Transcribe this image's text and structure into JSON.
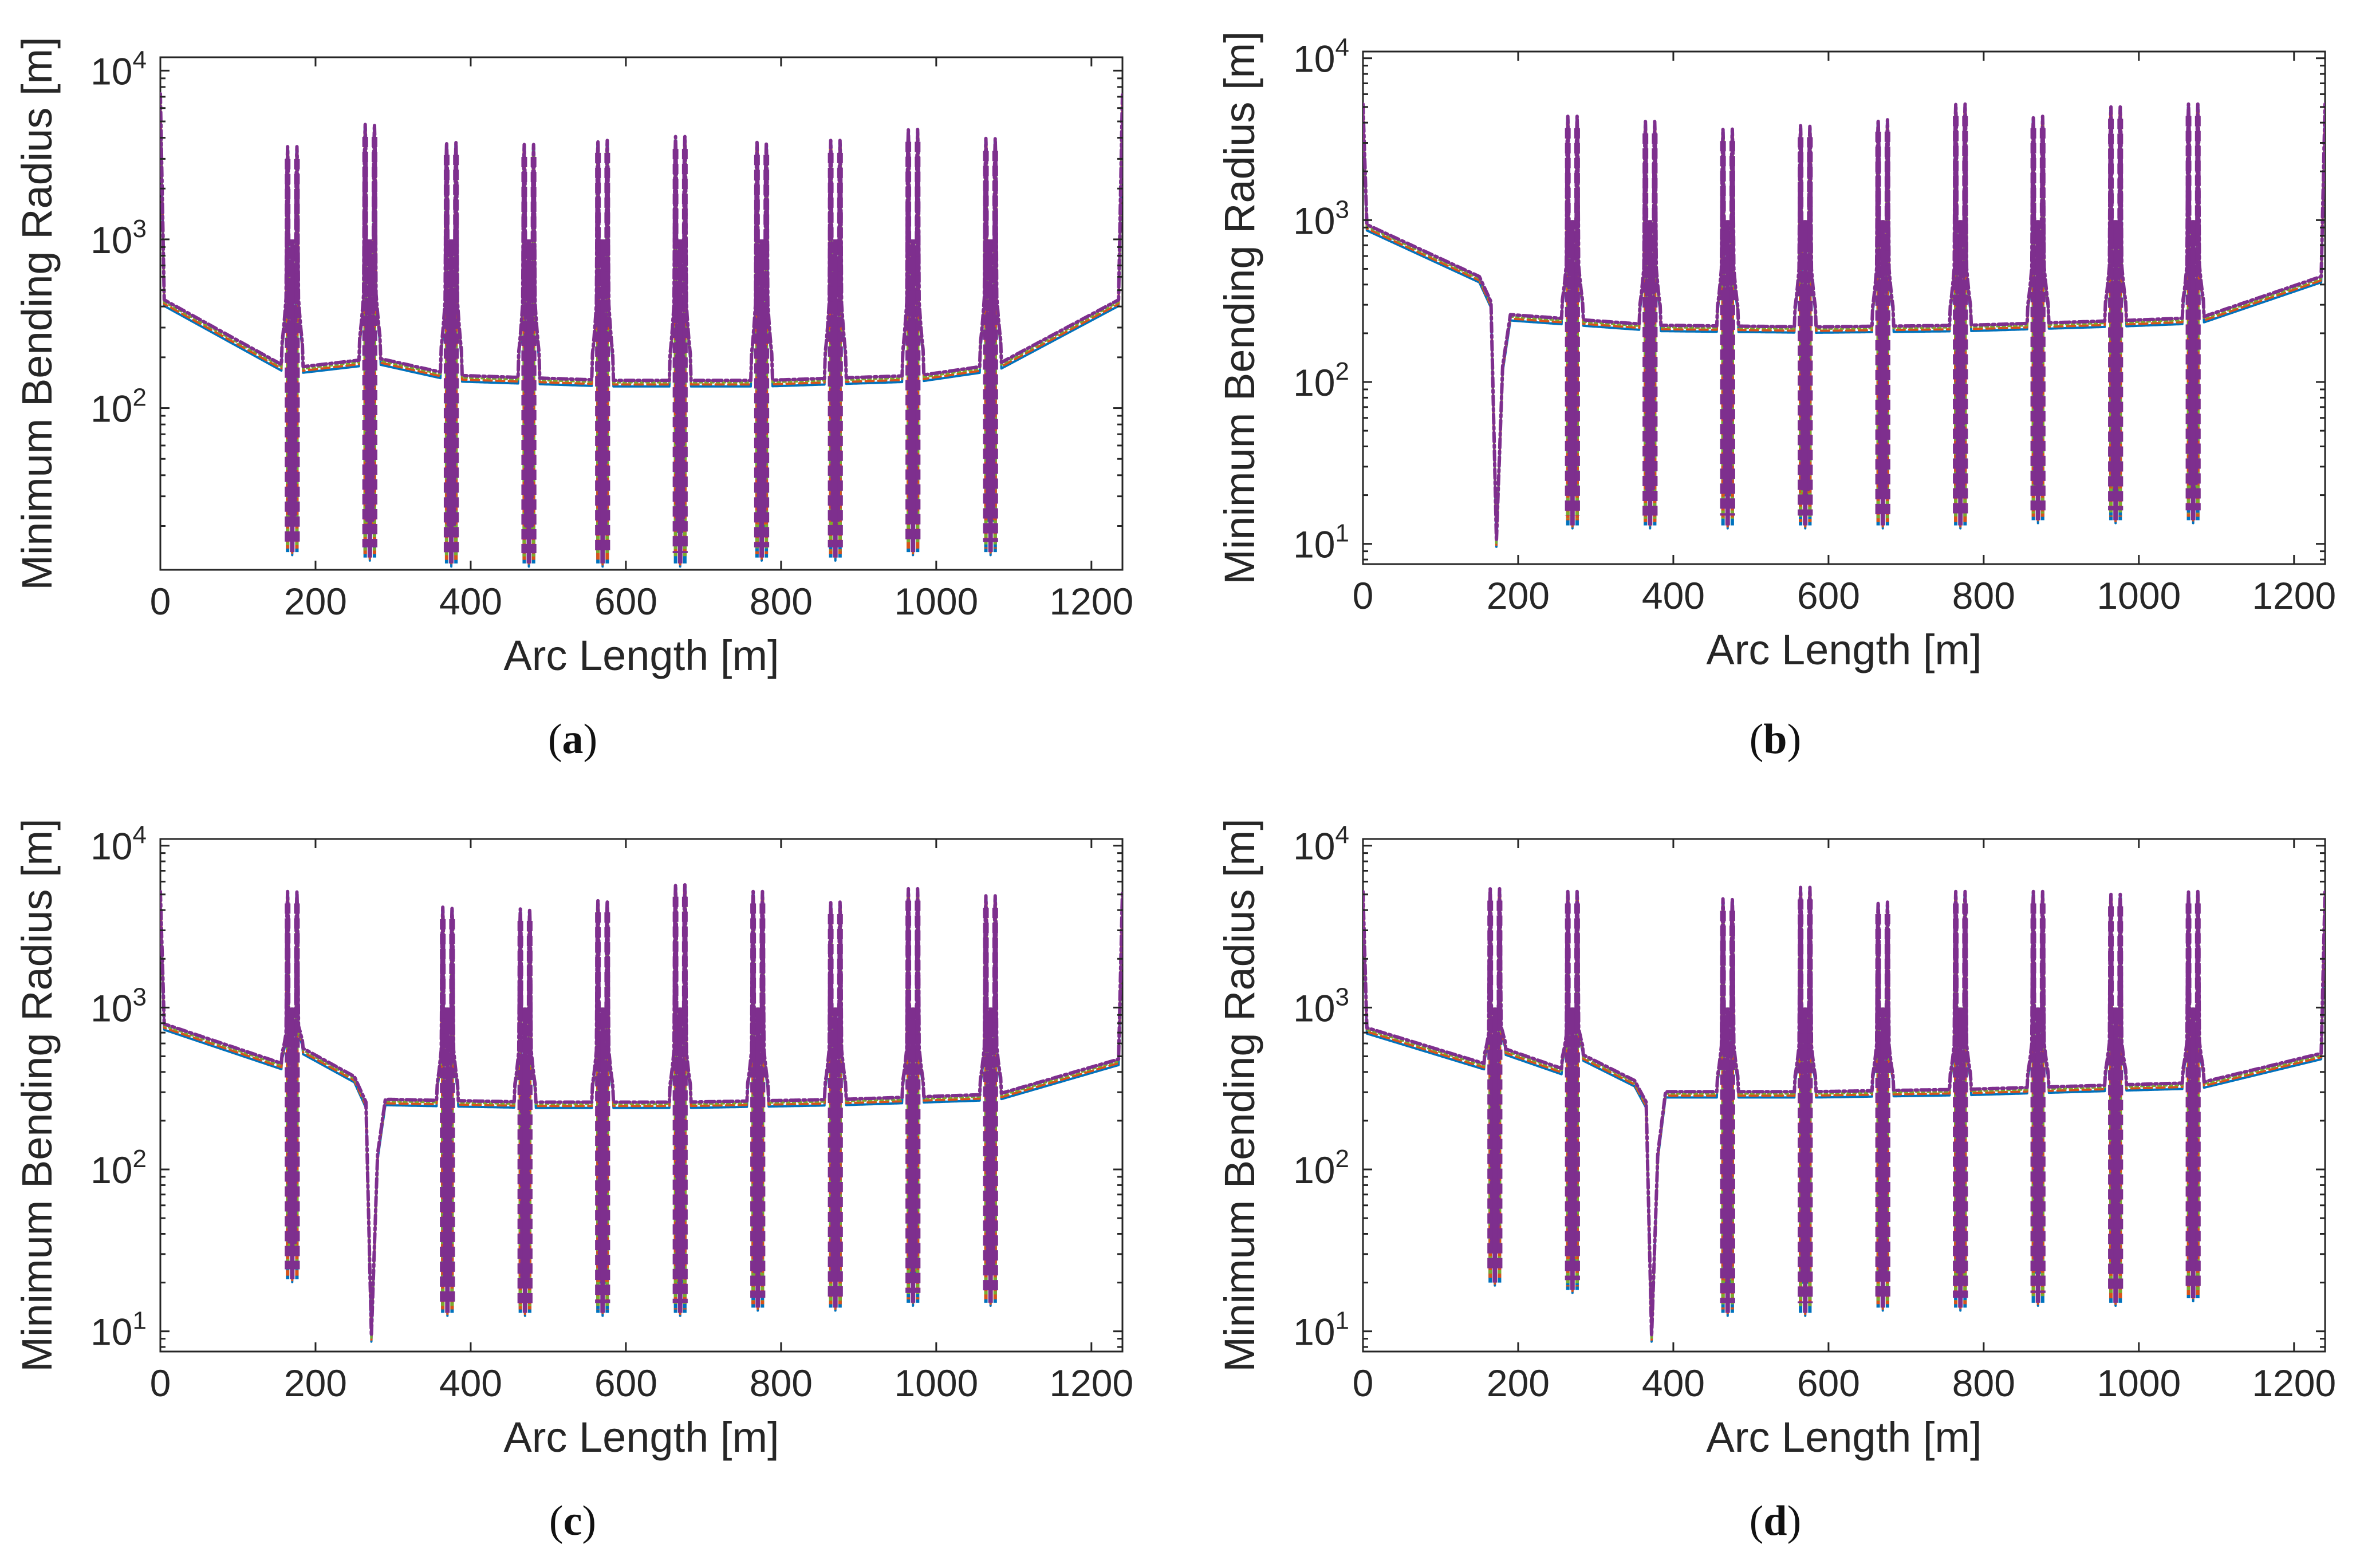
{
  "figure": {
    "panels_caption_labels": [
      "a",
      "b",
      "c",
      "d"
    ]
  },
  "chart_data": [
    {
      "type": "line",
      "panel": "a",
      "xlabel": "Arc Length [m]",
      "ylabel": "Minimum Bending Radius [m]",
      "yscale": "log",
      "xlim": [
        0,
        1240
      ],
      "ylim": [
        11,
        12000
      ],
      "xticks": [
        0,
        200,
        400,
        600,
        800,
        1000,
        1200
      ],
      "yticks": [
        100,
        1000,
        10000
      ],
      "ytick_labels": [
        {
          "base": "10",
          "exp": "2"
        },
        {
          "base": "10",
          "exp": "3"
        },
        {
          "base": "10",
          "exp": "4"
        }
      ],
      "grid": false,
      "baseline": {
        "x": [
          0,
          5,
          165,
          280,
          380,
          580,
          780,
          980,
          1080,
          1235,
          1240
        ],
        "y": [
          7000,
          420,
          165,
          190,
          150,
          140,
          140,
          150,
          175,
          420,
          7000
        ]
      },
      "spikes": [
        {
          "center": 170,
          "top": 3400,
          "bottom": 14
        },
        {
          "center": 270,
          "top": 4600,
          "bottom": 13
        },
        {
          "center": 375,
          "top": 3600,
          "bottom": 12
        },
        {
          "center": 475,
          "top": 3500,
          "bottom": 12
        },
        {
          "center": 570,
          "top": 3700,
          "bottom": 12
        },
        {
          "center": 670,
          "top": 3900,
          "bottom": 12
        },
        {
          "center": 775,
          "top": 3600,
          "bottom": 13
        },
        {
          "center": 870,
          "top": 3700,
          "bottom": 13
        },
        {
          "center": 970,
          "top": 4300,
          "bottom": 14
        },
        {
          "center": 1070,
          "top": 3800,
          "bottom": 14
        }
      ],
      "series": [
        {
          "color": "#0072BD"
        },
        {
          "color": "#D95319"
        },
        {
          "color": "#77AC30"
        },
        {
          "color": "#7E2F8E"
        }
      ]
    },
    {
      "type": "line",
      "panel": "b",
      "xlabel": "Arc Length [m]",
      "ylabel": "Minimum Bending Radius [m]",
      "yscale": "log",
      "xlim": [
        0,
        1240
      ],
      "ylim": [
        7.5,
        11000
      ],
      "xticks": [
        0,
        200,
        400,
        600,
        800,
        1000,
        1200
      ],
      "yticks": [
        10,
        100,
        1000,
        10000
      ],
      "ytick_labels": [
        {
          "base": "10",
          "exp": "1"
        },
        {
          "base": "10",
          "exp": "2"
        },
        {
          "base": "10",
          "exp": "3"
        },
        {
          "base": "10",
          "exp": "4"
        }
      ],
      "grid": false,
      "baseline": {
        "x": [
          0,
          5,
          150,
          165,
          172,
          180,
          190,
          380,
          580,
          780,
          980,
          1080,
          1235,
          1240
        ],
        "y": [
          5000,
          900,
          430,
          300,
          10,
          120,
          250,
          215,
          210,
          215,
          230,
          240,
          430,
          5000
        ]
      },
      "spikes": [
        {
          "center": 270,
          "top": 4200,
          "bottom": 13
        },
        {
          "center": 370,
          "top": 3900,
          "bottom": 13
        },
        {
          "center": 470,
          "top": 3500,
          "bottom": 13
        },
        {
          "center": 570,
          "top": 3700,
          "bottom": 13
        },
        {
          "center": 670,
          "top": 4000,
          "bottom": 13
        },
        {
          "center": 770,
          "top": 5000,
          "bottom": 13
        },
        {
          "center": 870,
          "top": 4200,
          "bottom": 14
        },
        {
          "center": 970,
          "top": 4800,
          "bottom": 14
        },
        {
          "center": 1070,
          "top": 5000,
          "bottom": 14
        }
      ],
      "series": [
        {
          "color": "#0072BD"
        },
        {
          "color": "#D95319"
        },
        {
          "color": "#77AC30"
        },
        {
          "color": "#7E2F8E"
        }
      ]
    },
    {
      "type": "line",
      "panel": "c",
      "xlabel": "Arc Length [m]",
      "ylabel": "Minimum Bending Radius [m]",
      "yscale": "log",
      "xlim": [
        0,
        1240
      ],
      "ylim": [
        7.5,
        11000
      ],
      "xticks": [
        0,
        200,
        400,
        600,
        800,
        1000,
        1200
      ],
      "yticks": [
        10,
        100,
        1000,
        10000
      ],
      "ytick_labels": [
        {
          "base": "10",
          "exp": "1"
        },
        {
          "base": "10",
          "exp": "2"
        },
        {
          "base": "10",
          "exp": "3"
        },
        {
          "base": "10",
          "exp": "4"
        }
      ],
      "grid": false,
      "baseline": {
        "x": [
          0,
          5,
          165,
          180,
          250,
          265,
          272,
          280,
          290,
          480,
          680,
          880,
          1080,
          1235,
          1240
        ],
        "y": [
          5000,
          760,
          420,
          550,
          360,
          250,
          9,
          120,
          260,
          250,
          250,
          260,
          280,
          460,
          5000
        ]
      },
      "spikes": [
        {
          "center": 170,
          "top": 5000,
          "bottom": 21
        },
        {
          "center": 370,
          "top": 4000,
          "bottom": 13
        },
        {
          "center": 470,
          "top": 3900,
          "bottom": 13
        },
        {
          "center": 570,
          "top": 4400,
          "bottom": 13
        },
        {
          "center": 670,
          "top": 5500,
          "bottom": 13
        },
        {
          "center": 770,
          "top": 5000,
          "bottom": 14
        },
        {
          "center": 870,
          "top": 4300,
          "bottom": 14
        },
        {
          "center": 970,
          "top": 5200,
          "bottom": 15
        },
        {
          "center": 1070,
          "top": 4700,
          "bottom": 15
        }
      ],
      "series": [
        {
          "color": "#0072BD"
        },
        {
          "color": "#D95319"
        },
        {
          "color": "#77AC30"
        },
        {
          "color": "#7E2F8E"
        }
      ]
    },
    {
      "type": "line",
      "panel": "d",
      "xlabel": "Arc Length [m]",
      "ylabel": "Minimum Bending Radius [m]",
      "yscale": "log",
      "xlim": [
        0,
        1240
      ],
      "ylim": [
        7.5,
        11000
      ],
      "xticks": [
        0,
        200,
        400,
        600,
        800,
        1000,
        1200
      ],
      "yticks": [
        10,
        100,
        1000,
        10000
      ],
      "ytick_labels": [
        {
          "base": "10",
          "exp": "1"
        },
        {
          "base": "10",
          "exp": "2"
        },
        {
          "base": "10",
          "exp": "3"
        },
        {
          "base": "10",
          "exp": "4"
        }
      ],
      "grid": false,
      "baseline": {
        "x": [
          0,
          5,
          165,
          180,
          265,
          280,
          350,
          365,
          372,
          380,
          390,
          580,
          780,
          980,
          1080,
          1235,
          1240
        ],
        "y": [
          5000,
          720,
          420,
          540,
          390,
          500,
          340,
          250,
          9,
          120,
          290,
          290,
          300,
          320,
          330,
          500,
          5000
        ]
      },
      "spikes": [
        {
          "center": 170,
          "top": 5200,
          "bottom": 20
        },
        {
          "center": 270,
          "top": 5000,
          "bottom": 18
        },
        {
          "center": 470,
          "top": 4500,
          "bottom": 13
        },
        {
          "center": 570,
          "top": 5300,
          "bottom": 13
        },
        {
          "center": 670,
          "top": 4300,
          "bottom": 14
        },
        {
          "center": 770,
          "top": 5000,
          "bottom": 14
        },
        {
          "center": 870,
          "top": 5000,
          "bottom": 15
        },
        {
          "center": 970,
          "top": 4800,
          "bottom": 15
        },
        {
          "center": 1070,
          "top": 5000,
          "bottom": 16
        }
      ],
      "series": [
        {
          "color": "#0072BD"
        },
        {
          "color": "#D95319"
        },
        {
          "color": "#77AC30"
        },
        {
          "color": "#7E2F8E"
        }
      ]
    }
  ]
}
